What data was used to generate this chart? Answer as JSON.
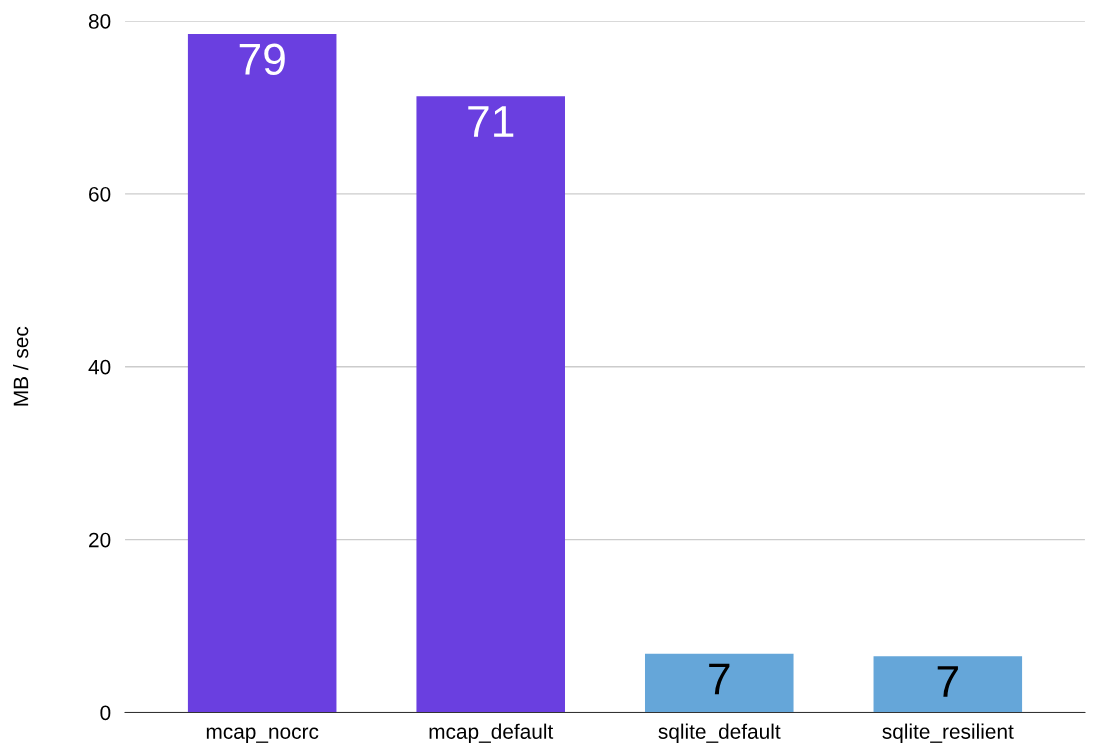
{
  "chart_data": {
    "type": "bar",
    "ylabel": "MB / sec",
    "categories": [
      "mcap_nocrc",
      "mcap_default",
      "sqlite_default",
      "sqlite_resilient"
    ],
    "values": [
      78.5,
      71.3,
      6.8,
      6.5
    ],
    "colors": [
      "#6a3fe0",
      "#6a3fe0",
      "#65a6d9",
      "#65a6d9"
    ],
    "value_labels": [
      "79",
      "71",
      "7",
      "7"
    ],
    "ylim": [
      0,
      80
    ],
    "yticks": [
      0,
      20,
      40,
      60,
      80
    ],
    "grid": "y",
    "legend": false
  }
}
